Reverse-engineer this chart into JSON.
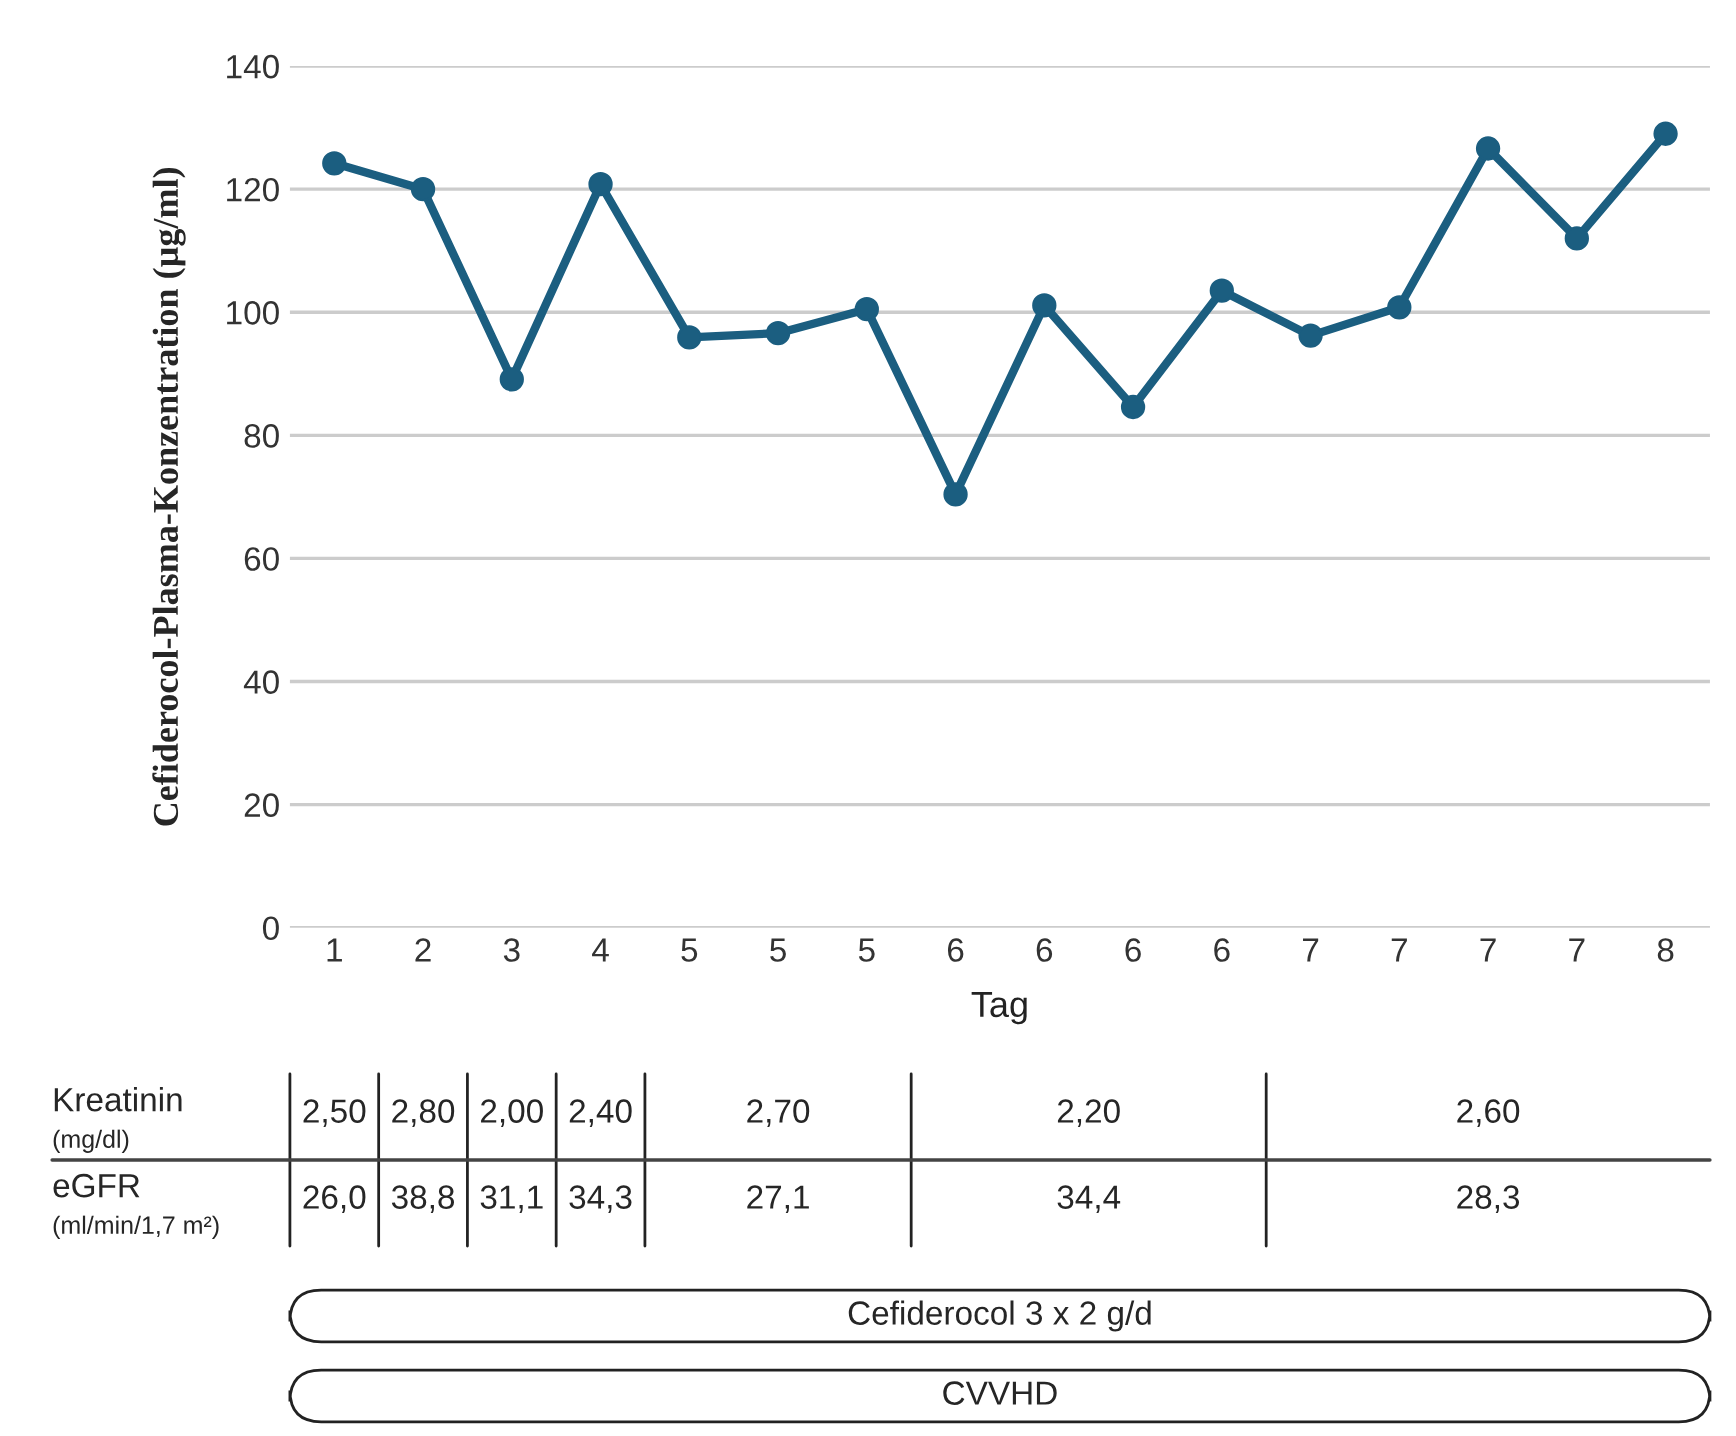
{
  "chart_data": {
    "type": "line",
    "xlabel": "Tag",
    "ylabel": "Cefiderocol-Plasma-Konzentration (µg/ml)",
    "categories": [
      "1",
      "2",
      "3",
      "4",
      "5",
      "5",
      "5",
      "6",
      "6",
      "6",
      "6",
      "7",
      "7",
      "7",
      "7",
      "8"
    ],
    "series": [
      {
        "color": "#1b5e80",
        "values": [
          124.2,
          120,
          89.1,
          120.8,
          95.9,
          96.6,
          100.5,
          70.4,
          101.1,
          84.6,
          103.5,
          96.2,
          100.8,
          126.6,
          112,
          129
        ]
      }
    ],
    "ylim": [
      0,
      140
    ],
    "yticks": [
      0,
      20,
      40,
      60,
      80,
      100,
      120,
      140
    ],
    "grid": "y",
    "marker": "circle",
    "line_style": "solid",
    "annotations": [
      "Kreatinin",
      "(mg/dl)",
      "eGFR",
      "(ml/min/1,7 m²)",
      "2,50",
      "2,80",
      "2,00",
      "2,40",
      "2,70",
      "2,20",
      "2,60",
      "26,0",
      "38,8",
      "31,1",
      "34,3",
      "27,1",
      "34,4",
      "28,3",
      "Cefiderocol 3 x 2 g/d",
      "CVVHD"
    ]
  }
}
